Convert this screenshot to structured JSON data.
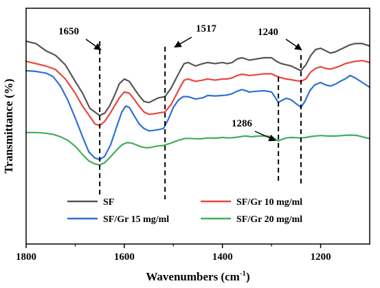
{
  "chart_data": {
    "type": "line",
    "title": "",
    "xlabel": "Wavenumbers (cm",
    "xlabel_sup": "-1",
    "xlabel_close": ")",
    "ylabel": "Transmittance (%)",
    "xlim": [
      1800,
      1100
    ],
    "x_reversed": true,
    "y_tick_labels": false,
    "grid": false,
    "x_ticks": [
      {
        "value": 1800,
        "label": "1800"
      },
      {
        "value": 1600,
        "label": "1600"
      },
      {
        "value": 1400,
        "label": "1400"
      },
      {
        "value": 1200,
        "label": "1200"
      }
    ],
    "legend_position": "bottom-center",
    "series": [
      {
        "name": "SF",
        "color": "#555555",
        "points": [
          [
            1800,
            0.86
          ],
          [
            1780,
            0.85
          ],
          [
            1760,
            0.82
          ],
          [
            1740,
            0.8
          ],
          [
            1720,
            0.76
          ],
          [
            1700,
            0.69
          ],
          [
            1685,
            0.64
          ],
          [
            1670,
            0.575
          ],
          [
            1660,
            0.56
          ],
          [
            1650,
            0.545
          ],
          [
            1640,
            0.555
          ],
          [
            1630,
            0.585
          ],
          [
            1620,
            0.63
          ],
          [
            1610,
            0.68
          ],
          [
            1600,
            0.7
          ],
          [
            1590,
            0.69
          ],
          [
            1580,
            0.66
          ],
          [
            1570,
            0.63
          ],
          [
            1560,
            0.605
          ],
          [
            1550,
            0.6
          ],
          [
            1540,
            0.61
          ],
          [
            1530,
            0.62
          ],
          [
            1517,
            0.625
          ],
          [
            1505,
            0.66
          ],
          [
            1495,
            0.7
          ],
          [
            1485,
            0.74
          ],
          [
            1478,
            0.765
          ],
          [
            1470,
            0.77
          ],
          [
            1455,
            0.755
          ],
          [
            1440,
            0.765
          ],
          [
            1430,
            0.77
          ],
          [
            1415,
            0.765
          ],
          [
            1400,
            0.77
          ],
          [
            1390,
            0.765
          ],
          [
            1380,
            0.77
          ],
          [
            1370,
            0.785
          ],
          [
            1360,
            0.79
          ],
          [
            1345,
            0.78
          ],
          [
            1330,
            0.785
          ],
          [
            1315,
            0.79
          ],
          [
            1300,
            0.79
          ],
          [
            1290,
            0.775
          ],
          [
            1280,
            0.765
          ],
          [
            1270,
            0.76
          ],
          [
            1260,
            0.755
          ],
          [
            1250,
            0.745
          ],
          [
            1240,
            0.735
          ],
          [
            1230,
            0.76
          ],
          [
            1220,
            0.8
          ],
          [
            1210,
            0.825
          ],
          [
            1200,
            0.83
          ],
          [
            1190,
            0.82
          ],
          [
            1180,
            0.81
          ],
          [
            1170,
            0.815
          ],
          [
            1160,
            0.825
          ],
          [
            1150,
            0.835
          ],
          [
            1140,
            0.845
          ],
          [
            1130,
            0.85
          ],
          [
            1115,
            0.85
          ],
          [
            1100,
            0.84
          ]
        ]
      },
      {
        "name": "SF/Gr 10 mg/ml",
        "color": "#e8453c",
        "points": [
          [
            1800,
            0.775
          ],
          [
            1780,
            0.765
          ],
          [
            1760,
            0.755
          ],
          [
            1740,
            0.74
          ],
          [
            1720,
            0.7
          ],
          [
            1700,
            0.64
          ],
          [
            1685,
            0.585
          ],
          [
            1670,
            0.54
          ],
          [
            1660,
            0.51
          ],
          [
            1650,
            0.502
          ],
          [
            1640,
            0.52
          ],
          [
            1630,
            0.55
          ],
          [
            1620,
            0.585
          ],
          [
            1610,
            0.62
          ],
          [
            1600,
            0.645
          ],
          [
            1590,
            0.64
          ],
          [
            1580,
            0.615
          ],
          [
            1570,
            0.585
          ],
          [
            1560,
            0.56
          ],
          [
            1550,
            0.55
          ],
          [
            1540,
            0.552
          ],
          [
            1530,
            0.556
          ],
          [
            1517,
            0.56
          ],
          [
            1505,
            0.59
          ],
          [
            1495,
            0.63
          ],
          [
            1485,
            0.67
          ],
          [
            1478,
            0.695
          ],
          [
            1470,
            0.7
          ],
          [
            1455,
            0.69
          ],
          [
            1440,
            0.695
          ],
          [
            1430,
            0.7
          ],
          [
            1415,
            0.695
          ],
          [
            1400,
            0.7
          ],
          [
            1390,
            0.7
          ],
          [
            1380,
            0.705
          ],
          [
            1370,
            0.715
          ],
          [
            1360,
            0.72
          ],
          [
            1345,
            0.715
          ],
          [
            1330,
            0.718
          ],
          [
            1315,
            0.722
          ],
          [
            1300,
            0.722
          ],
          [
            1290,
            0.712
          ],
          [
            1280,
            0.705
          ],
          [
            1270,
            0.7
          ],
          [
            1260,
            0.697
          ],
          [
            1250,
            0.693
          ],
          [
            1240,
            0.69
          ],
          [
            1230,
            0.7
          ],
          [
            1220,
            0.73
          ],
          [
            1210,
            0.745
          ],
          [
            1200,
            0.752
          ],
          [
            1190,
            0.745
          ],
          [
            1180,
            0.742
          ],
          [
            1170,
            0.748
          ],
          [
            1160,
            0.755
          ],
          [
            1150,
            0.765
          ],
          [
            1140,
            0.77
          ],
          [
            1130,
            0.775
          ],
          [
            1115,
            0.778
          ],
          [
            1100,
            0.77
          ]
        ]
      },
      {
        "name": "SF/Gr 15 mg/ml",
        "color": "#2d6fd6",
        "points": [
          [
            1800,
            0.735
          ],
          [
            1780,
            0.732
          ],
          [
            1760,
            0.725
          ],
          [
            1745,
            0.71
          ],
          [
            1730,
            0.67
          ],
          [
            1715,
            0.61
          ],
          [
            1700,
            0.535
          ],
          [
            1685,
            0.455
          ],
          [
            1672,
            0.39
          ],
          [
            1660,
            0.365
          ],
          [
            1650,
            0.358
          ],
          [
            1640,
            0.372
          ],
          [
            1628,
            0.42
          ],
          [
            1615,
            0.5
          ],
          [
            1605,
            0.56
          ],
          [
            1597,
            0.585
          ],
          [
            1590,
            0.58
          ],
          [
            1580,
            0.545
          ],
          [
            1570,
            0.51
          ],
          [
            1560,
            0.49
          ],
          [
            1550,
            0.48
          ],
          [
            1540,
            0.482
          ],
          [
            1530,
            0.485
          ],
          [
            1520,
            0.49
          ],
          [
            1510,
            0.53
          ],
          [
            1500,
            0.58
          ],
          [
            1490,
            0.61
          ],
          [
            1480,
            0.625
          ],
          [
            1470,
            0.625
          ],
          [
            1455,
            0.615
          ],
          [
            1440,
            0.62
          ],
          [
            1430,
            0.63
          ],
          [
            1415,
            0.628
          ],
          [
            1400,
            0.63
          ],
          [
            1390,
            0.632
          ],
          [
            1380,
            0.638
          ],
          [
            1370,
            0.648
          ],
          [
            1360,
            0.655
          ],
          [
            1345,
            0.645
          ],
          [
            1330,
            0.648
          ],
          [
            1315,
            0.65
          ],
          [
            1300,
            0.645
          ],
          [
            1292,
            0.62
          ],
          [
            1286,
            0.6
          ],
          [
            1280,
            0.608
          ],
          [
            1270,
            0.618
          ],
          [
            1260,
            0.612
          ],
          [
            1250,
            0.595
          ],
          [
            1240,
            0.58
          ],
          [
            1232,
            0.605
          ],
          [
            1222,
            0.65
          ],
          [
            1212,
            0.675
          ],
          [
            1200,
            0.685
          ],
          [
            1190,
            0.675
          ],
          [
            1180,
            0.67
          ],
          [
            1170,
            0.678
          ],
          [
            1160,
            0.69
          ],
          [
            1150,
            0.7
          ],
          [
            1140,
            0.715
          ],
          [
            1130,
            0.705
          ],
          [
            1115,
            0.685
          ],
          [
            1100,
            0.665
          ]
        ]
      },
      {
        "name": "SF/Gr 20 mg/ml",
        "color": "#3fae5a",
        "points": [
          [
            1800,
            0.473
          ],
          [
            1780,
            0.473
          ],
          [
            1760,
            0.47
          ],
          [
            1745,
            0.465
          ],
          [
            1730,
            0.455
          ],
          [
            1715,
            0.44
          ],
          [
            1700,
            0.415
          ],
          [
            1685,
            0.38
          ],
          [
            1672,
            0.352
          ],
          [
            1660,
            0.34
          ],
          [
            1650,
            0.335
          ],
          [
            1640,
            0.345
          ],
          [
            1628,
            0.37
          ],
          [
            1615,
            0.4
          ],
          [
            1605,
            0.42
          ],
          [
            1595,
            0.43
          ],
          [
            1585,
            0.428
          ],
          [
            1575,
            0.42
          ],
          [
            1565,
            0.412
          ],
          [
            1555,
            0.408
          ],
          [
            1545,
            0.41
          ],
          [
            1535,
            0.415
          ],
          [
            1520,
            0.418
          ],
          [
            1505,
            0.428
          ],
          [
            1490,
            0.44
          ],
          [
            1475,
            0.448
          ],
          [
            1460,
            0.447
          ],
          [
            1445,
            0.446
          ],
          [
            1430,
            0.45
          ],
          [
            1415,
            0.449
          ],
          [
            1400,
            0.452
          ],
          [
            1385,
            0.45
          ],
          [
            1370,
            0.453
          ],
          [
            1355,
            0.458
          ],
          [
            1340,
            0.455
          ],
          [
            1325,
            0.458
          ],
          [
            1310,
            0.458
          ],
          [
            1300,
            0.455
          ],
          [
            1292,
            0.445
          ],
          [
            1286,
            0.437
          ],
          [
            1280,
            0.443
          ],
          [
            1270,
            0.45
          ],
          [
            1260,
            0.452
          ],
          [
            1250,
            0.451
          ],
          [
            1240,
            0.45
          ],
          [
            1230,
            0.452
          ],
          [
            1220,
            0.456
          ],
          [
            1210,
            0.458
          ],
          [
            1200,
            0.46
          ],
          [
            1185,
            0.458
          ],
          [
            1170,
            0.458
          ],
          [
            1155,
            0.46
          ],
          [
            1140,
            0.462
          ],
          [
            1125,
            0.46
          ],
          [
            1110,
            0.452
          ],
          [
            1100,
            0.447
          ]
        ]
      }
    ],
    "annotations": [
      {
        "text": "1650",
        "x": 1650,
        "arrow_direction": "down-right"
      },
      {
        "text": "1517",
        "x": 1517,
        "arrow_direction": "down-left"
      },
      {
        "text": "1240",
        "x": 1240,
        "arrow_direction": "down-right"
      },
      {
        "text": "1286",
        "x": 1286,
        "arrow_direction": "down-right"
      }
    ]
  }
}
